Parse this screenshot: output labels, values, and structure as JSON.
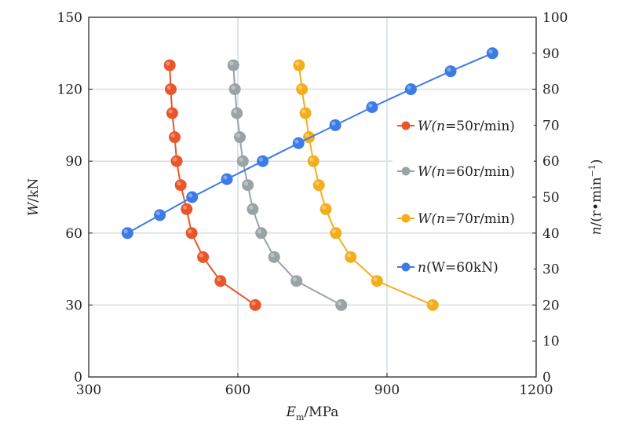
{
  "chart_data": {
    "type": "line",
    "title": "",
    "xlabel": "E_m/MPa",
    "xlabel_main": "E",
    "xlabel_sub": "m",
    "xlabel_rest": "/MPa",
    "ylabel": "W/kN",
    "ylabel_main": "W",
    "ylabel_rest": "/kN",
    "y2label": "n/(r•min⁻¹)",
    "y2label_main": "n",
    "y2label_rest": "/(r•min",
    "y2label_sup": "−1",
    "y2label_close": ")",
    "xlim": [
      300,
      1200
    ],
    "ylim": [
      0,
      150
    ],
    "y2lim": [
      0,
      100
    ],
    "xticks": [
      "300",
      "600",
      "900",
      "1200"
    ],
    "yticks": [
      "0",
      "30",
      "60",
      "90",
      "120",
      "150"
    ],
    "y2ticks": [
      "0",
      "10",
      "20",
      "30",
      "40",
      "50",
      "60",
      "70",
      "80",
      "90",
      "100"
    ],
    "grid": true,
    "legend_position": "right",
    "series": [
      {
        "name": "W(n=50r/min)",
        "name_main": "W(",
        "name_var": "n",
        "name_rest": "=50r/min)",
        "color": "#e8562a",
        "axis": "left",
        "points": [
          [
            635,
            30
          ],
          [
            565,
            40
          ],
          [
            530,
            50
          ],
          [
            507,
            60
          ],
          [
            497,
            70
          ],
          [
            485,
            80
          ],
          [
            477,
            90
          ],
          [
            473,
            100
          ],
          [
            468,
            110
          ],
          [
            465,
            120
          ],
          [
            463,
            130
          ]
        ]
      },
      {
        "name": "W(n=60r/min)",
        "name_main": "W(",
        "name_var": "n",
        "name_rest": "=60r/min)",
        "color": "#9aa3a6",
        "axis": "left",
        "points": [
          [
            808,
            30
          ],
          [
            718,
            40
          ],
          [
            673,
            50
          ],
          [
            647,
            60
          ],
          [
            630,
            70
          ],
          [
            620,
            80
          ],
          [
            610,
            90
          ],
          [
            604,
            100
          ],
          [
            598,
            110
          ],
          [
            594,
            120
          ],
          [
            591,
            130
          ]
        ]
      },
      {
        "name": "W(n=70r/min)",
        "name_main": "W(",
        "name_var": "n",
        "name_rest": "=70r/min)",
        "color": "#f4ae1b",
        "axis": "left",
        "points": [
          [
            992,
            30
          ],
          [
            880,
            40
          ],
          [
            827,
            50
          ],
          [
            797,
            60
          ],
          [
            777,
            70
          ],
          [
            763,
            80
          ],
          [
            752,
            90
          ],
          [
            743,
            100
          ],
          [
            736,
            110
          ],
          [
            729,
            120
          ],
          [
            723,
            130
          ]
        ]
      },
      {
        "name": "n(W=60kN)",
        "name_main": "",
        "name_var": "n",
        "name_rest": "(W=60kN)",
        "color": "#3c7be8",
        "axis": "right",
        "points": [
          [
            378,
            40
          ],
          [
            443,
            45
          ],
          [
            508,
            50
          ],
          [
            578,
            55
          ],
          [
            650,
            60
          ],
          [
            722,
            65
          ],
          [
            796,
            70
          ],
          [
            870,
            75
          ],
          [
            948,
            80
          ],
          [
            1028,
            85
          ],
          [
            1112,
            90
          ]
        ]
      }
    ]
  }
}
